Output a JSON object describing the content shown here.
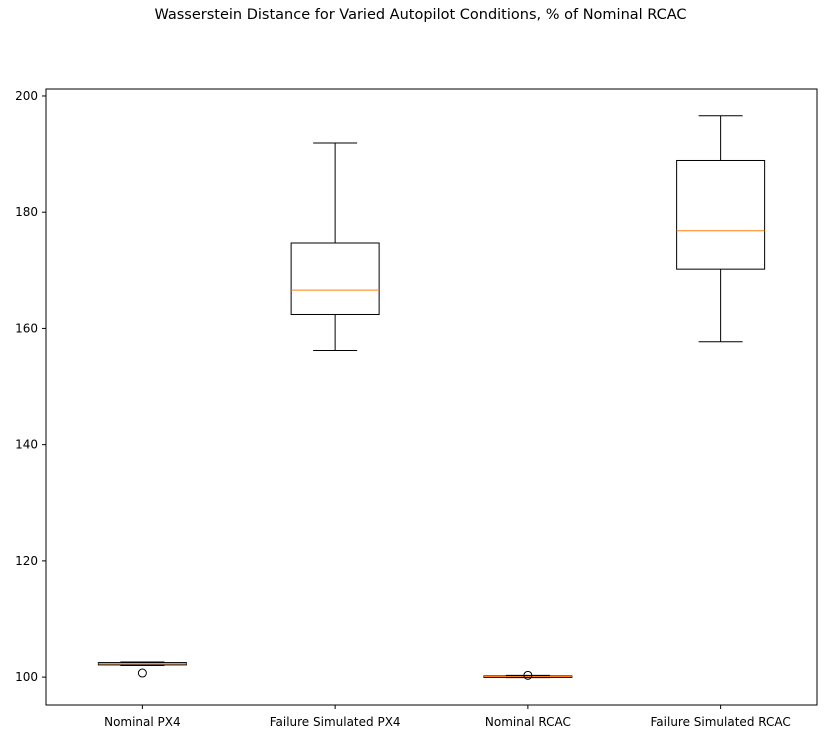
{
  "chart_data": {
    "type": "boxplot",
    "title": "Wasserstein Distance for Varied Autopilot Conditions, % of Nominal RCAC",
    "xlabel": "",
    "ylabel": "",
    "ylim": [
      95.2,
      201.2
    ],
    "yticks": [
      100,
      120,
      140,
      160,
      180,
      200
    ],
    "categories": [
      "Nominal PX4",
      "Failure Simulated PX4",
      "Nominal RCAC",
      "Failure Simulated RCAC"
    ],
    "boxes": [
      {
        "whisker_low": 102.0,
        "q1": 102.1,
        "median": 102.3,
        "q3": 102.5,
        "whisker_high": 102.6,
        "outliers": [
          100.7
        ]
      },
      {
        "whisker_low": 156.2,
        "q1": 162.4,
        "median": 166.6,
        "q3": 174.7,
        "whisker_high": 191.9,
        "outliers": []
      },
      {
        "whisker_low": 99.9,
        "q1": 99.95,
        "median": 100.1,
        "q3": 100.2,
        "whisker_high": 100.3,
        "outliers": [
          100.3
        ]
      },
      {
        "whisker_low": 157.7,
        "q1": 170.2,
        "median": 176.8,
        "q3": 188.9,
        "whisker_high": 196.6,
        "outliers": []
      }
    ],
    "colors": {
      "box": "#000000",
      "median": "#ff7f0e"
    },
    "grid": false,
    "legend": "none"
  }
}
